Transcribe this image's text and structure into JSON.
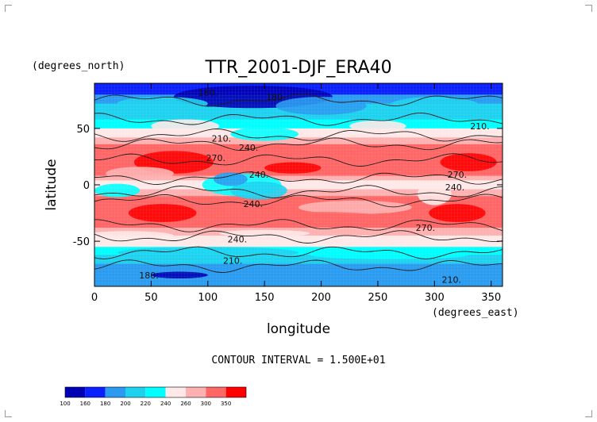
{
  "chart_data": {
    "type": "heatmap",
    "title": "TTR_2001-DJF_ERA40",
    "xlabel": "longitude",
    "ylabel": "latitude",
    "x_unit": "(degrees_east)",
    "y_unit": "(degrees_north)",
    "xlim": [
      0,
      360
    ],
    "ylim": [
      -90,
      90
    ],
    "x_ticks": [
      0,
      50,
      100,
      150,
      200,
      250,
      300,
      350
    ],
    "y_ticks": [
      -50,
      0,
      50
    ],
    "contour_interval_label": "CONTOUR INTERVAL = 1.500E+01",
    "contour_levels": [
      180,
      210,
      240,
      270
    ],
    "contour_labels": [
      {
        "text": "180.",
        "lon": 100,
        "lat": 82
      },
      {
        "text": "180.",
        "lon": 160,
        "lat": 78
      },
      {
        "text": "210.",
        "lon": 112,
        "lat": 41
      },
      {
        "text": "240.",
        "lon": 136,
        "lat": 33
      },
      {
        "text": "210.",
        "lon": 340,
        "lat": 52
      },
      {
        "text": "270.",
        "lon": 107,
        "lat": 24
      },
      {
        "text": "270.",
        "lon": 320,
        "lat": 9
      },
      {
        "text": "240.",
        "lon": 145,
        "lat": 9
      },
      {
        "text": "240.",
        "lon": 318,
        "lat": -2
      },
      {
        "text": "240.",
        "lon": 140,
        "lat": -17
      },
      {
        "text": "270.",
        "lon": 292,
        "lat": -38
      },
      {
        "text": "240.",
        "lon": 126,
        "lat": -48
      },
      {
        "text": "210.",
        "lon": 122,
        "lat": -67
      },
      {
        "text": "180.",
        "lon": 48,
        "lat": -80
      },
      {
        "text": "210.",
        "lon": 315,
        "lat": -84
      }
    ],
    "colorbar": {
      "ticks": [
        "100",
        "160",
        "180",
        "200",
        "220",
        "240",
        "260",
        "300",
        "350"
      ],
      "colors": [
        "#0000b4",
        "#0a20ff",
        "#2a9bf0",
        "#1ed2ef",
        "#00ffff",
        "#ffe8e8",
        "#ffb1b1",
        "#ff6666",
        "#ff0000"
      ]
    }
  }
}
